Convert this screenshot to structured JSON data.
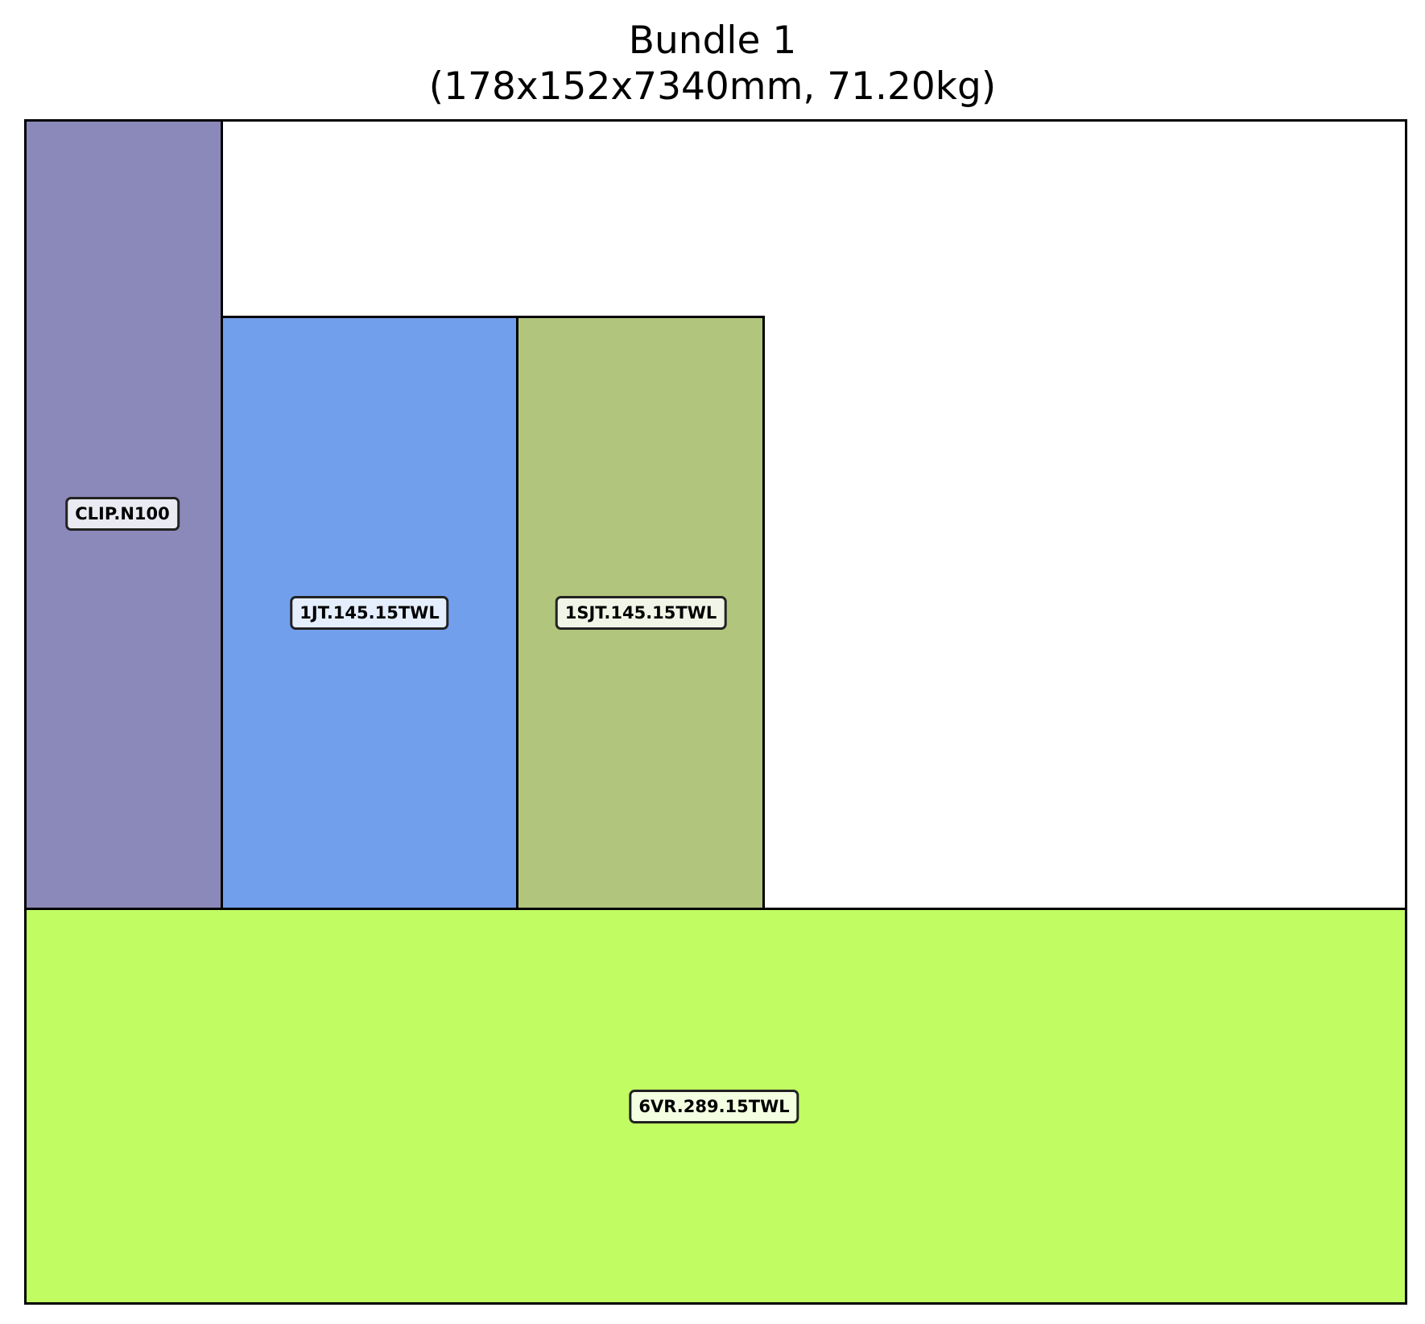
{
  "title": {
    "line1": "Bundle 1",
    "line2": "(178x152x7340mm, 71.20kg)"
  },
  "colors": {
    "frame_border": "#000000",
    "background": "#ffffff"
  },
  "pieces": [
    {
      "id": "CLIP.N100",
      "label": "CLIP.N100",
      "color": "#8b89b9"
    },
    {
      "id": "1JT.145.15TWL",
      "label": "1JT.145.15TWL",
      "color": "#729fec"
    },
    {
      "id": "1SJT.145.15TWL",
      "label": "1SJT.145.15TWL",
      "color": "#b1c57c"
    },
    {
      "id": "6VR.289.15TWL",
      "label": "6VR.289.15TWL",
      "color": "#c0fc62"
    }
  ]
}
